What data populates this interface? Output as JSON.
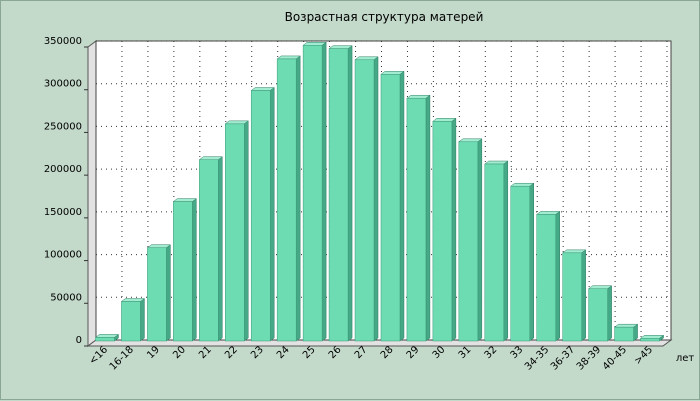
{
  "chart_data": {
    "type": "bar",
    "title": "Возрастная структура матерей",
    "xlabel": "",
    "ylabel": "",
    "x_unit_label": "лет",
    "categories": [
      "<16",
      "16-18",
      "19",
      "20",
      "21",
      "22",
      "23",
      "24",
      "25",
      "26",
      "27",
      "28",
      "29",
      "30",
      "31",
      "32",
      "33",
      "34-35",
      "36-37",
      "38-39",
      "40-45",
      ">45"
    ],
    "values": [
      3000,
      45000,
      108000,
      162000,
      211000,
      253000,
      292000,
      329000,
      345000,
      341000,
      328000,
      311000,
      283000,
      256000,
      232000,
      206000,
      180000,
      147000,
      102000,
      60000,
      15000,
      2000
    ],
    "ylim": [
      0,
      350000
    ],
    "y_ticks": [
      "0",
      "50000",
      "100000",
      "150000",
      "200000",
      "250000",
      "300000",
      "350000"
    ],
    "grid": true,
    "legend": "none",
    "colors": {
      "bar_front": "#6edcb3",
      "bar_side": "#45a886",
      "bar_top": "#a2ecd1",
      "plot_bg": "#ffffff",
      "page_bg": "#c3d9ca",
      "wall": "#e2e2e2",
      "grid": "#333333"
    }
  }
}
